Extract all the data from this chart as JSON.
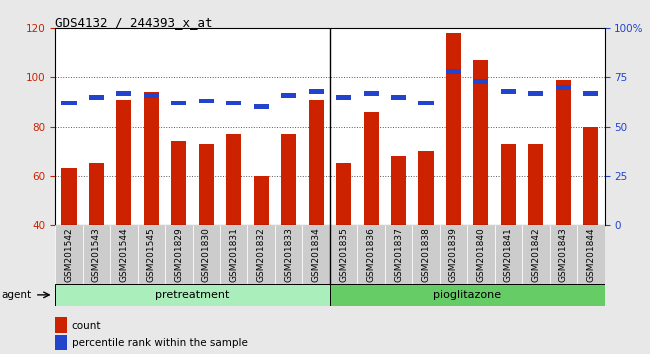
{
  "title": "GDS4132 / 244393_x_at",
  "samples": [
    "GSM201542",
    "GSM201543",
    "GSM201544",
    "GSM201545",
    "GSM201829",
    "GSM201830",
    "GSM201831",
    "GSM201832",
    "GSM201833",
    "GSM201834",
    "GSM201835",
    "GSM201836",
    "GSM201837",
    "GSM201838",
    "GSM201839",
    "GSM201840",
    "GSM201841",
    "GSM201842",
    "GSM201843",
    "GSM201844"
  ],
  "counts": [
    63,
    65,
    91,
    94,
    74,
    73,
    77,
    60,
    77,
    91,
    65,
    86,
    68,
    70,
    118,
    107,
    73,
    73,
    99,
    80
  ],
  "percentile_ranks": [
    62,
    65,
    67,
    66,
    62,
    63,
    62,
    60,
    66,
    68,
    65,
    67,
    65,
    62,
    78,
    73,
    68,
    67,
    70,
    67
  ],
  "pretreatment_count": 10,
  "pioglitazone_count": 10,
  "ylim_left": [
    40,
    120
  ],
  "ylim_right": [
    0,
    100
  ],
  "yticks_left": [
    40,
    60,
    80,
    100,
    120
  ],
  "yticks_right": [
    0,
    25,
    50,
    75,
    100
  ],
  "yticklabels_right": [
    "0",
    "25",
    "50",
    "75",
    "100%"
  ],
  "bar_color": "#cc2200",
  "marker_color": "#2244cc",
  "bar_width": 0.55,
  "fig_bg": "#e8e8e8",
  "plot_bg": "#ffffff",
  "tick_bg": "#cccccc",
  "pretreatment_color": "#aaeebb",
  "pioglitazone_color": "#66cc66",
  "agent_label": "agent",
  "legend_count_label": "count",
  "legend_pct_label": "percentile rank within the sample",
  "separator_idx": 10
}
